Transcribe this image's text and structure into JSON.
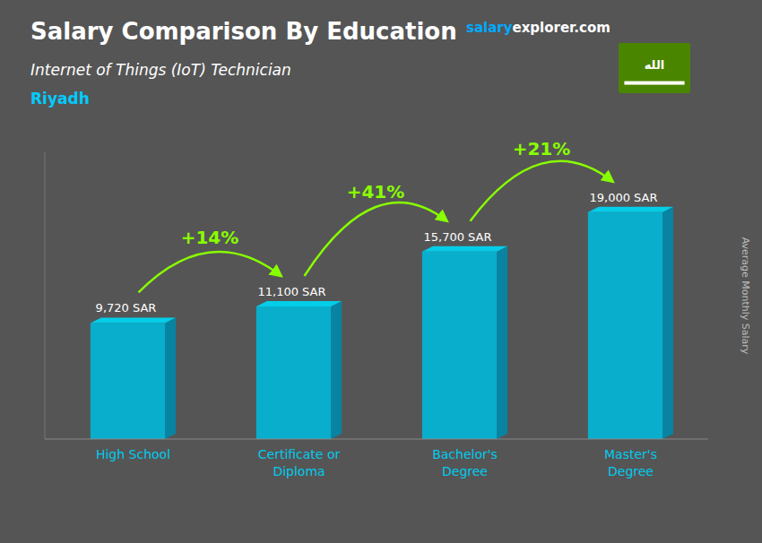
{
  "chart_data": {
    "type": "bar",
    "title": "Salary Comparison By Education",
    "subtitle": "Internet of Things (IoT) Technician",
    "location": "Riyadh",
    "ylabel": "Average Monthly Salary",
    "categories": [
      "High School",
      "Certificate or\nDiploma",
      "Bachelor's\nDegree",
      "Master's\nDegree"
    ],
    "values": [
      9720,
      11100,
      15700,
      19000
    ],
    "value_labels": [
      "9,720 SAR",
      "11,100 SAR",
      "15,700 SAR",
      "19,000 SAR"
    ],
    "data_labels": true,
    "color": "#00B8D9",
    "ylim": [
      0,
      24000
    ],
    "tick_labels": false,
    "grid": false,
    "annotations": [
      {
        "text": "+14%",
        "color": "#88FF00"
      },
      {
        "text": "+41%",
        "color": "#88FF00"
      },
      {
        "text": "+21%",
        "color": "#88FF00"
      }
    ],
    "brand": [
      {
        "text": "salary",
        "color": "#00AAFF"
      },
      {
        "text": "explorer.com",
        "color": "#FFFFFF"
      }
    ],
    "flag_label": "الله"
  }
}
